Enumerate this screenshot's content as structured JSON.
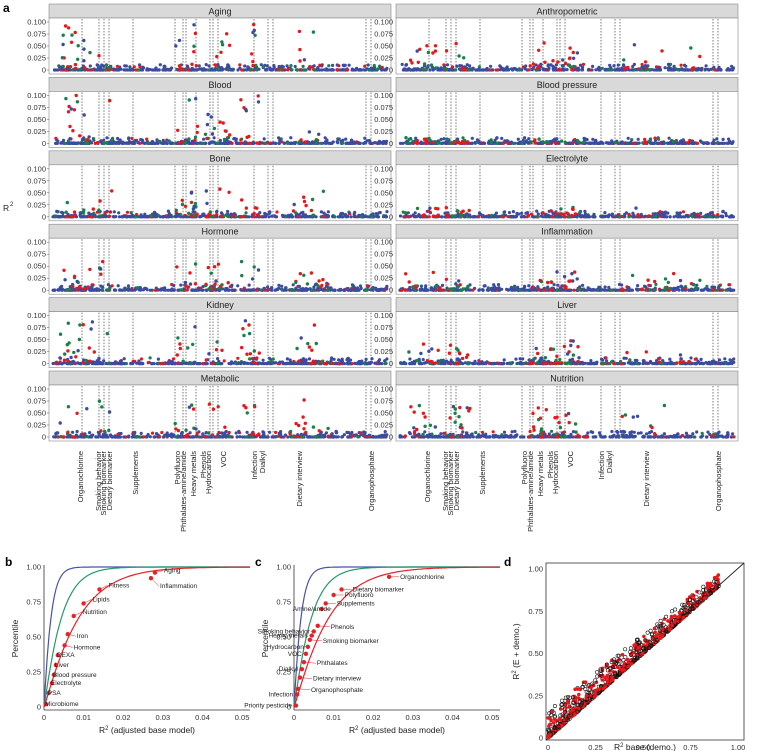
{
  "figure": {
    "panel_labels": [
      "a",
      "b",
      "c",
      "d"
    ]
  },
  "chart_data": [
    {
      "id": "a",
      "type": "scatter",
      "ylabel": "R2",
      "ylim": [
        0,
        0.1
      ],
      "yticks": [
        "0",
        "0.025",
        "0.050",
        "0.075",
        "0.100"
      ],
      "colors": {
        "red": "#e31a1c",
        "green": "#1b7f4a",
        "blue": "#3b4ba0"
      },
      "facets": [
        "Aging",
        "Anthropometric",
        "Blood",
        "Blood pressure",
        "Bone",
        "Electrolyte",
        "Hormone",
        "Inflammation",
        "Kidney",
        "Liver",
        "Metabolic",
        "Nutrition"
      ],
      "exposure_groups": [
        "Organochlorine",
        "Smoking behavior",
        "Smoking biomarker",
        "Dietary biomarker",
        "Supplements",
        "Polyfluoro",
        "Phthalates-amine/amide",
        "Heavy metals",
        "Phenols",
        "Hydrocarbon",
        "VOC",
        "Infection",
        "Dialkyl",
        "Dietary interview",
        "Organophosphate"
      ]
    },
    {
      "id": "b",
      "type": "line",
      "xlabel": "R2 (adjusted base model)",
      "ylabel": "Percentile",
      "xlim": [
        0,
        0.052
      ],
      "ylim": [
        0,
        1
      ],
      "xticks": [
        "0",
        "0.01",
        "0.02",
        "0.03",
        "0.04",
        "0.05"
      ],
      "yticks": [
        "0",
        "0.25",
        "0.50",
        "0.75",
        "1.00"
      ],
      "series": [
        {
          "name": "blue curve",
          "color": "#4753a8"
        },
        {
          "name": "green curve",
          "color": "#249a66"
        },
        {
          "name": "red curve",
          "color": "#e0242a"
        }
      ],
      "points": [
        {
          "label": "Microbiome",
          "x": 0.0005,
          "y": 0.02
        },
        {
          "label": "PSA",
          "x": 0.0012,
          "y": 0.1
        },
        {
          "label": "Electrolyte",
          "x": 0.002,
          "y": 0.17
        },
        {
          "label": "Blood pressure",
          "x": 0.0025,
          "y": 0.23
        },
        {
          "label": "Liver",
          "x": 0.003,
          "y": 0.3
        },
        {
          "label": "DEXA",
          "x": 0.0035,
          "y": 0.37
        },
        {
          "label": "Hormone",
          "x": 0.0052,
          "y": 0.44
        },
        {
          "label": "Iron",
          "x": 0.006,
          "y": 0.52
        },
        {
          "label": "Nutrition",
          "x": 0.0075,
          "y": 0.65
        },
        {
          "label": "Lipids",
          "x": 0.01,
          "y": 0.74
        },
        {
          "label": "Fitness",
          "x": 0.014,
          "y": 0.84
        },
        {
          "label": "Inflammation",
          "x": 0.027,
          "y": 0.92
        },
        {
          "label": "Aging",
          "x": 0.028,
          "y": 0.96
        }
      ]
    },
    {
      "id": "c",
      "type": "line",
      "xlabel": "R2 (adjusted base model)",
      "ylabel": "Percentile",
      "xlim": [
        0,
        0.052
      ],
      "ylim": [
        0,
        1
      ],
      "xticks": [
        "0",
        "0.01",
        "0.02",
        "0.03",
        "0.04",
        "0.05"
      ],
      "yticks": [
        "0",
        "0.25",
        "0.50",
        "0.75",
        "1.00"
      ],
      "points": [
        {
          "label": "Priority pesticide",
          "x": 0.0005,
          "y": 0.01
        },
        {
          "label": "Infection",
          "x": 0.0008,
          "y": 0.09
        },
        {
          "label": "Organophosphate",
          "x": 0.001,
          "y": 0.13
        },
        {
          "label": "Dietary interview",
          "x": 0.0015,
          "y": 0.21
        },
        {
          "label": "Dialkyl",
          "x": 0.002,
          "y": 0.27
        },
        {
          "label": "Phthalates",
          "x": 0.0025,
          "y": 0.32
        },
        {
          "label": "VOC",
          "x": 0.003,
          "y": 0.38
        },
        {
          "label": "Hydrocarbon",
          "x": 0.0035,
          "y": 0.43
        },
        {
          "label": "Smoking biomarker",
          "x": 0.004,
          "y": 0.48
        },
        {
          "label": "Heavy metals",
          "x": 0.0045,
          "y": 0.51
        },
        {
          "label": "Smoking behavior",
          "x": 0.005,
          "y": 0.54
        },
        {
          "label": "Phenols",
          "x": 0.006,
          "y": 0.58
        },
        {
          "label": "Amine/amide",
          "x": 0.007,
          "y": 0.7
        },
        {
          "label": "Supplements",
          "x": 0.008,
          "y": 0.74
        },
        {
          "label": "Polyfluoro",
          "x": 0.01,
          "y": 0.8
        },
        {
          "label": "Dietary biomarker",
          "x": 0.012,
          "y": 0.84
        },
        {
          "label": "Organochlorine",
          "x": 0.024,
          "y": 0.93
        }
      ]
    },
    {
      "id": "d",
      "type": "scatter",
      "xlabel": "R2 base (demo.)",
      "ylabel": "R2 (E + demo.)",
      "xlim": [
        0,
        1
      ],
      "ylim": [
        0,
        1
      ],
      "xticks": [
        "0",
        "0.25",
        "0.50",
        "0.75",
        "1.00"
      ],
      "yticks": [
        "0",
        "0.25",
        "0.50",
        "0.75",
        "1.00"
      ]
    }
  ]
}
